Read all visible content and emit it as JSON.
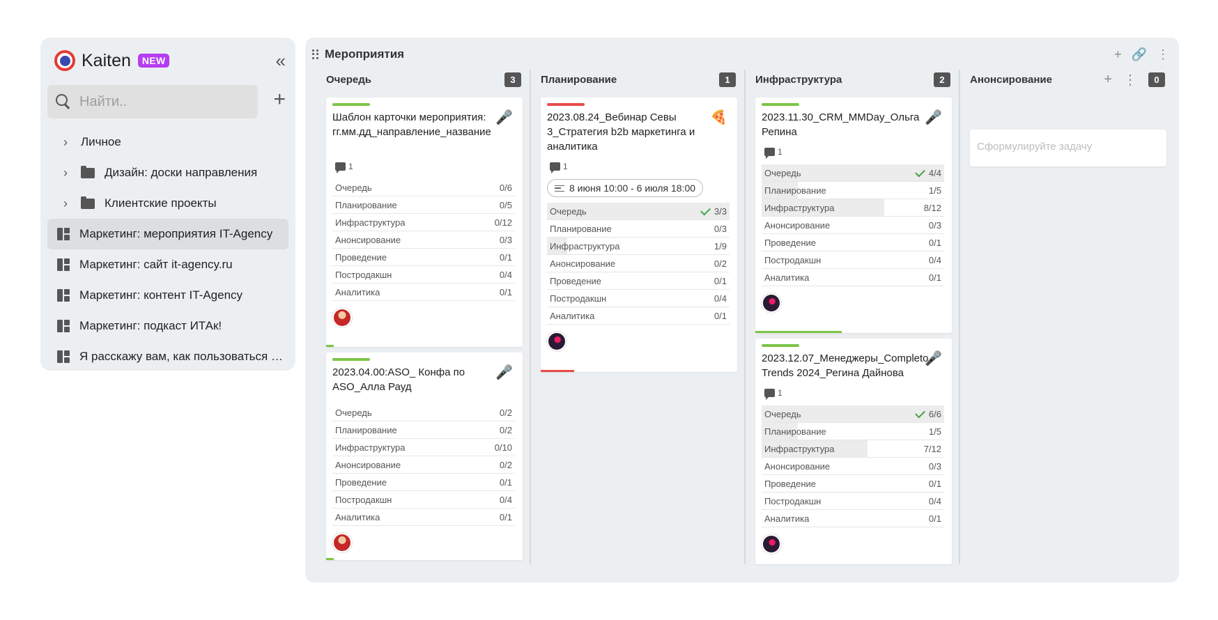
{
  "sidebar": {
    "brand": "Kaiten",
    "badge": "NEW",
    "collapse_icon": "«",
    "search_placeholder": "Найти..",
    "add_icon": "+",
    "items": [
      {
        "label": "Личное",
        "type": "section"
      },
      {
        "label": "Дизайн: доски направления",
        "type": "folder"
      },
      {
        "label": "Клиентские проекты",
        "type": "folder"
      },
      {
        "label": "Маркетинг: мероприятия IT-Agency",
        "type": "board",
        "active": true
      },
      {
        "label": "Маркетинг: сайт it-agency.ru",
        "type": "board"
      },
      {
        "label": "Маркетинг: контент IT-Agency",
        "type": "board"
      },
      {
        "label": "Маркетинг: подкаст ИТАк!",
        "type": "board"
      },
      {
        "label": "Я расскажу вам, как пользоваться Kaiten",
        "type": "board"
      }
    ]
  },
  "board": {
    "title": "Мероприятия",
    "actions": [
      "+",
      "🔗",
      "⋮"
    ],
    "columns": [
      {
        "title": "Очередь",
        "count": "3"
      },
      {
        "title": "Планирование",
        "count": "1"
      },
      {
        "title": "Инфраструктура",
        "count": "2"
      },
      {
        "title": "Анонсирование",
        "count": "0",
        "add": "+",
        "more": "⋮",
        "placeholder": "Сформулируйте задачу"
      }
    ],
    "cards": [
      {
        "title": "Шаблон карточки мероприятия: гг.мм.дд_направление_название",
        "emoji": "🎤",
        "topbar_color": "#7cc547",
        "progress_color": "#7cc547",
        "progress": 0.04,
        "comments": "1",
        "checklist": [
          {
            "name": "Очередь",
            "value": "0/6",
            "fill": 0
          },
          {
            "name": "Планирование",
            "value": "0/5",
            "fill": 0
          },
          {
            "name": "Инфраструктура",
            "value": "0/12",
            "fill": 0
          },
          {
            "name": "Анонсирование",
            "value": "0/3",
            "fill": 0
          },
          {
            "name": "Проведение",
            "value": "0/1",
            "fill": 0
          },
          {
            "name": "Постродакшн",
            "value": "0/4",
            "fill": 0
          },
          {
            "name": "Аналитика",
            "value": "0/1",
            "fill": 0
          }
        ]
      },
      {
        "title": "2023.04.00:ASO_ Конфа по ASO_Алла Рауд",
        "emoji": "🎤",
        "topbar_color": "#7cc547",
        "progress_color": "#7cc547",
        "progress": 0.04,
        "checklist": [
          {
            "name": "Очередь",
            "value": "0/2",
            "fill": 0
          },
          {
            "name": "Планирование",
            "value": "0/2",
            "fill": 0
          },
          {
            "name": "Инфраструктура",
            "value": "0/10",
            "fill": 0
          },
          {
            "name": "Анонсирование",
            "value": "0/2",
            "fill": 0
          },
          {
            "name": "Проведение",
            "value": "0/1",
            "fill": 0
          },
          {
            "name": "Постродакшн",
            "value": "0/4",
            "fill": 0
          },
          {
            "name": "Аналитика",
            "value": "0/1",
            "fill": 0
          }
        ]
      },
      {
        "title": "2023.08.24_Вебинар Севы 3_Стратегия b2b маркетинга и аналитика",
        "emoji": "🍕",
        "topbar_color": "#e84a4a",
        "progress_color": "#e84a4a",
        "progress": 0.17,
        "comments": "1",
        "date": "8 июня 10:00 - 6 июля 18:00",
        "checklist": [
          {
            "name": "Очередь",
            "value": "3/3",
            "fill": 1,
            "done": true
          },
          {
            "name": "Планирование",
            "value": "0/3",
            "fill": 0
          },
          {
            "name": "Инфраструктура",
            "value": "1/9",
            "fill": 0.11
          },
          {
            "name": "Анонсирование",
            "value": "0/2",
            "fill": 0
          },
          {
            "name": "Проведение",
            "value": "0/1",
            "fill": 0
          },
          {
            "name": "Постродакшн",
            "value": "0/4",
            "fill": 0
          },
          {
            "name": "Аналитика",
            "value": "0/1",
            "fill": 0
          }
        ]
      },
      {
        "title": "2023.11.30_CRM_MMDay_Ольга Репина",
        "emoji": "🎤",
        "topbar_color": "#7cc547",
        "progress_color": "#7cc547",
        "progress": 0.44,
        "comments": "1",
        "checklist": [
          {
            "name": "Очередь",
            "value": "4/4",
            "fill": 1,
            "done": true
          },
          {
            "name": "Планирование",
            "value": "1/5",
            "fill": 0.2
          },
          {
            "name": "Инфраструктура",
            "value": "8/12",
            "fill": 0.67
          },
          {
            "name": "Анонсирование",
            "value": "0/3",
            "fill": 0
          },
          {
            "name": "Проведение",
            "value": "0/1",
            "fill": 0
          },
          {
            "name": "Постродакшн",
            "value": "0/4",
            "fill": 0
          },
          {
            "name": "Аналитика",
            "value": "0/1",
            "fill": 0
          }
        ]
      },
      {
        "title": "2023.12.07_Менеджеры_Completo Trends 2024_Регина Дайнова",
        "emoji": "🎤",
        "topbar_color": "#7cc547",
        "comments": "1",
        "checklist": [
          {
            "name": "Очередь",
            "value": "6/6",
            "fill": 1,
            "done": true
          },
          {
            "name": "Планирование",
            "value": "1/5",
            "fill": 0.2
          },
          {
            "name": "Инфраструктура",
            "value": "7/12",
            "fill": 0.58
          },
          {
            "name": "Анонсирование",
            "value": "0/3",
            "fill": 0
          },
          {
            "name": "Проведение",
            "value": "0/1",
            "fill": 0
          },
          {
            "name": "Постродакшн",
            "value": "0/4",
            "fill": 0
          },
          {
            "name": "Аналитика",
            "value": "0/1",
            "fill": 0
          }
        ]
      }
    ]
  }
}
